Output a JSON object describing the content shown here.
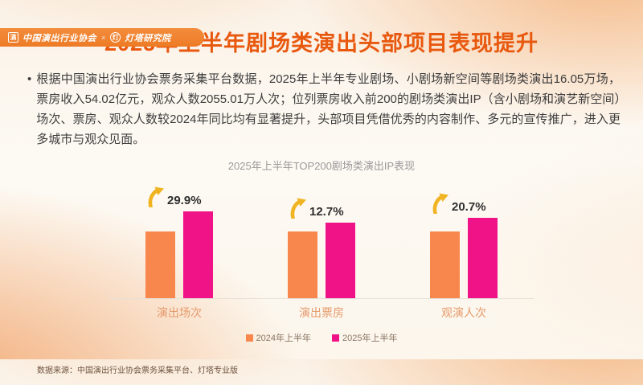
{
  "header": {
    "org_left": "中国演出行业协会",
    "divider": "×",
    "org_right": "灯塔研究院",
    "seal_glyph": "演",
    "lighthouse_glyph": "灯"
  },
  "slide": {
    "title": "2025年上半年剧场类演出头部项目表现提升",
    "bullet": "•",
    "paragraph": "根据中国演出行业协会票务采集平台数据，2025年上半年专业剧场、小剧场新空间等剧场类演出16.05万场，票房收入54.02亿元，观众人数2055.01万人次；位列票房收入前200的剧场类演出IP（含小剧场和演艺新空间）场次、票房、观众人数较2024年同比均有显著提升，头部项目凭借优秀的内容制作、多元的宣传推广，进入更多城市与观众见面。"
  },
  "chart_data": {
    "type": "bar",
    "title": "2025年上半年TOP200剧场类演出IP表现",
    "categories": [
      "演出场次",
      "演出票房",
      "观演人次"
    ],
    "series": [
      {
        "name": "2024年上半年",
        "color": "#F8874E",
        "values": [
          100,
          100,
          100
        ]
      },
      {
        "name": "2025年上半年",
        "color": "#F01287",
        "values": [
          129.9,
          112.7,
          120.7
        ]
      }
    ],
    "growth_labels": [
      "29.9%",
      "12.7%",
      "20.7%"
    ],
    "legend_position": "bottom",
    "grid": false,
    "arrow_color": "#F0B422"
  },
  "footer": {
    "source": "数据来源：中国演出行业协会票务采集平台、灯塔专业版"
  },
  "colors": {
    "title_accent": "#E8590F",
    "banner": "#EE7B26"
  }
}
